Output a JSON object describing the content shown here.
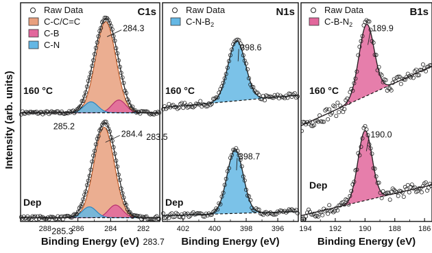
{
  "y_axis_label": "Intensity (arb. units)",
  "chart_data": [
    {
      "type": "line",
      "title": "C1s",
      "xlabel": "Binding Energy (eV)",
      "ylabel": "Intensity (arb. units)",
      "x_reversed": true,
      "xlim": [
        289.5,
        281.0
      ],
      "x_ticks": [
        288,
        286,
        284,
        282
      ],
      "legend": {
        "placement": "top-left",
        "entries": [
          {
            "label": "Raw Data",
            "marker": "open-circle"
          },
          {
            "label": "C-C/C=C",
            "color": "#e8a07e"
          },
          {
            "label": "C-B",
            "color": "#e2679c"
          },
          {
            "label": "C-N",
            "color": "#64b7e4"
          }
        ]
      },
      "spectra": [
        {
          "condition": "160 °C",
          "baseline": 0.0,
          "components": [
            {
              "name": "C-C/C=C",
              "center": 284.3,
              "amplitude": 1.0,
              "fwhm": 1.45,
              "color": "#e8a07e",
              "line": "#c05e2c"
            },
            {
              "name": "C-B",
              "center": 283.5,
              "amplitude": 0.14,
              "fwhm": 1.0,
              "color": "#e2679c",
              "line": "#b8306e"
            },
            {
              "name": "C-N",
              "center": 285.2,
              "amplitude": 0.12,
              "fwhm": 1.0,
              "color": "#64b7e4",
              "line": "#2a86c0"
            }
          ],
          "peak_labels": [
            "284.3",
            "283.5",
            "285.2"
          ]
        },
        {
          "condition": "Dep",
          "baseline": 0.0,
          "components": [
            {
              "name": "C-C/C=C",
              "center": 284.4,
              "amplitude": 1.0,
              "fwhm": 1.45,
              "color": "#e8a07e",
              "line": "#c05e2c"
            },
            {
              "name": "C-B",
              "center": 283.7,
              "amplitude": 0.14,
              "fwhm": 1.0,
              "color": "#e2679c",
              "line": "#b8306e"
            },
            {
              "name": "C-N",
              "center": 285.3,
              "amplitude": 0.12,
              "fwhm": 1.0,
              "color": "#64b7e4",
              "line": "#2a86c0"
            }
          ],
          "peak_labels": [
            "284.4",
            "283.7",
            "285.3"
          ]
        }
      ]
    },
    {
      "type": "line",
      "title": "N1s",
      "xlabel": "Binding Energy (eV)",
      "x_reversed": true,
      "xlim": [
        403.3,
        394.7
      ],
      "x_ticks": [
        402,
        400,
        398,
        396
      ],
      "legend": {
        "placement": "top-left",
        "entries": [
          {
            "label": "Raw Data",
            "marker": "open-circle"
          },
          {
            "label": "C-N-B",
            "subscript": "2",
            "color": "#64b7e4"
          }
        ]
      },
      "spectra": [
        {
          "condition": "160 °C",
          "baseline_slope": 0.012,
          "noise": 0.05,
          "components": [
            {
              "name": "C-N-B2",
              "center": 398.6,
              "amplitude": 1.0,
              "fwhm": 1.3,
              "color": "#64b7e4",
              "line": "#2a86c0"
            }
          ],
          "peak_labels": [
            "398.6"
          ]
        },
        {
          "condition": "Dep",
          "baseline_slope": 0.01,
          "noise": 0.04,
          "components": [
            {
              "name": "C-N-B2",
              "center": 398.7,
              "amplitude": 1.0,
              "fwhm": 1.2,
              "color": "#64b7e4",
              "line": "#2a86c0"
            }
          ],
          "peak_labels": [
            "398.7"
          ]
        }
      ]
    },
    {
      "type": "line",
      "title": "B1s",
      "xlabel": "Binding Energy (eV)",
      "x_reversed": true,
      "xlim": [
        194.3,
        185.5
      ],
      "x_ticks": [
        194,
        192,
        190,
        188,
        186
      ],
      "legend": {
        "placement": "top-left",
        "entries": [
          {
            "label": "Raw Data",
            "marker": "open-circle"
          },
          {
            "label": "C-B-N",
            "subscript": "2",
            "color": "#e2679c"
          }
        ]
      },
      "spectra": [
        {
          "condition": "160 °C",
          "baseline_slope": 0.045,
          "noise": 0.09,
          "components": [
            {
              "name": "C-B-N2",
              "center": 189.9,
              "amplitude": 1.0,
              "fwhm": 1.2,
              "color": "#e2679c",
              "line": "#b8306e"
            }
          ],
          "peak_labels": [
            "189.9"
          ]
        },
        {
          "condition": "Dep",
          "baseline_slope": 0.04,
          "noise": 0.08,
          "components": [
            {
              "name": "C-B-N2",
              "center": 190.0,
              "amplitude": 1.0,
              "fwhm": 1.1,
              "color": "#e2679c",
              "line": "#b8306e"
            }
          ],
          "peak_labels": [
            "190.0"
          ]
        }
      ]
    }
  ]
}
